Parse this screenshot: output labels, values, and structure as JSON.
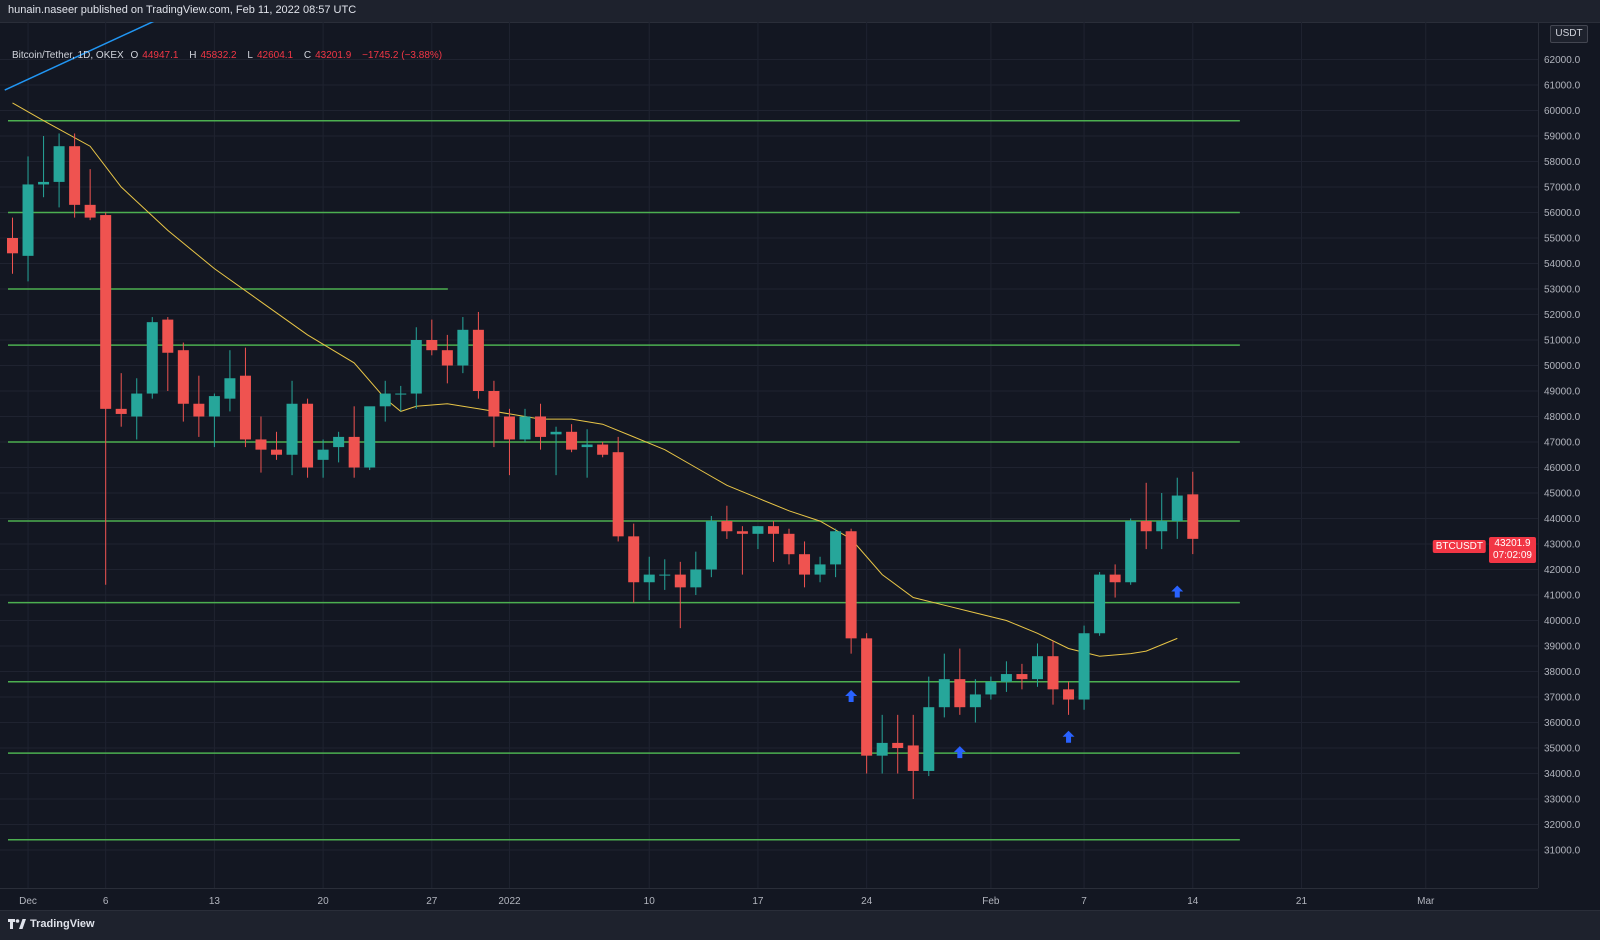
{
  "publisher_line": "hunain.naseer published on TradingView.com, Feb 11, 2022 08:57 UTC",
  "brand": "TradingView",
  "legend": {
    "symbol": "Bitcoin/Tether, 1D, OKEX",
    "open_label": "O",
    "open": "44947.1",
    "high_label": "H",
    "high": "45832.2",
    "low_label": "L",
    "low": "42604.1",
    "close_label": "C",
    "close": "43201.9",
    "change": "−1745.2 (−3.88%)"
  },
  "price_axis": {
    "unit": "USDT",
    "last_price": "43201.9",
    "countdown": "07:02:09",
    "symbol_tag": "BTCUSDT"
  },
  "colors": {
    "background": "#131722",
    "grid": "#1f2330",
    "bull": "#26a69a",
    "bear": "#ef5350",
    "sr_line": "#4caf50",
    "moving_average": "#e8c547",
    "trendline": "#2196f3",
    "arrow": "#2962ff"
  },
  "icons": [
    "tradingview-logo-icon",
    "up-arrow-icon"
  ],
  "chart_data": {
    "type": "candlestick",
    "title": "Bitcoin/Tether, 1D, OKEX",
    "ylim": [
      30000,
      63000
    ],
    "y_ticks": [
      31000,
      32000,
      33000,
      34000,
      35000,
      36000,
      37000,
      38000,
      39000,
      40000,
      41000,
      42000,
      43000,
      44000,
      45000,
      46000,
      47000,
      48000,
      49000,
      50000,
      51000,
      52000,
      53000,
      54000,
      55000,
      56000,
      57000,
      58000,
      59000,
      60000,
      61000,
      62000
    ],
    "x_ticks": [
      "Dec",
      "6",
      "13",
      "20",
      "27",
      "2022",
      "10",
      "17",
      "24",
      "Feb",
      "7",
      "14",
      "21",
      "Mar"
    ],
    "x_tick_index": [
      1,
      6,
      13,
      20,
      27,
      32,
      41,
      48,
      55,
      63,
      69,
      76,
      83,
      91
    ],
    "candles": [
      {
        "o": 55000,
        "h": 55800,
        "l": 53600,
        "c": 54400
      },
      {
        "o": 54300,
        "h": 58200,
        "l": 53300,
        "c": 57100
      },
      {
        "o": 57100,
        "h": 59000,
        "l": 56600,
        "c": 57200
      },
      {
        "o": 57200,
        "h": 59100,
        "l": 56200,
        "c": 58600
      },
      {
        "o": 58600,
        "h": 59100,
        "l": 55800,
        "c": 56300
      },
      {
        "o": 56300,
        "h": 57700,
        "l": 55700,
        "c": 55800
      },
      {
        "o": 55900,
        "h": 56000,
        "l": 41400,
        "c": 48300
      },
      {
        "o": 48300,
        "h": 49700,
        "l": 47600,
        "c": 48100
      },
      {
        "o": 48000,
        "h": 49500,
        "l": 47100,
        "c": 48900
      },
      {
        "o": 48900,
        "h": 51900,
        "l": 48700,
        "c": 51700
      },
      {
        "o": 51800,
        "h": 51900,
        "l": 49000,
        "c": 50500
      },
      {
        "o": 50600,
        "h": 50900,
        "l": 47800,
        "c": 48500
      },
      {
        "o": 48500,
        "h": 49600,
        "l": 47200,
        "c": 48000
      },
      {
        "o": 48000,
        "h": 48900,
        "l": 46800,
        "c": 48800
      },
      {
        "o": 48700,
        "h": 50600,
        "l": 48200,
        "c": 49500
      },
      {
        "o": 49600,
        "h": 50700,
        "l": 46800,
        "c": 47100
      },
      {
        "o": 47100,
        "h": 48000,
        "l": 45800,
        "c": 46700
      },
      {
        "o": 46700,
        "h": 47400,
        "l": 46300,
        "c": 46500
      },
      {
        "o": 46500,
        "h": 49400,
        "l": 45700,
        "c": 48500
      },
      {
        "o": 48500,
        "h": 48700,
        "l": 45600,
        "c": 46000
      },
      {
        "o": 46300,
        "h": 47100,
        "l": 45600,
        "c": 46700
      },
      {
        "o": 46800,
        "h": 47400,
        "l": 46200,
        "c": 47200
      },
      {
        "o": 47200,
        "h": 48400,
        "l": 45600,
        "c": 46000
      },
      {
        "o": 46000,
        "h": 48100,
        "l": 45900,
        "c": 48400
      },
      {
        "o": 48400,
        "h": 49400,
        "l": 47800,
        "c": 48900
      },
      {
        "o": 48900,
        "h": 49200,
        "l": 48200,
        "c": 48900
      },
      {
        "o": 48900,
        "h": 51500,
        "l": 48300,
        "c": 51000
      },
      {
        "o": 51000,
        "h": 51800,
        "l": 50400,
        "c": 50600
      },
      {
        "o": 50600,
        "h": 51200,
        "l": 49300,
        "c": 50000
      },
      {
        "o": 50000,
        "h": 51900,
        "l": 49700,
        "c": 51400
      },
      {
        "o": 51400,
        "h": 52100,
        "l": 48700,
        "c": 49000
      },
      {
        "o": 49000,
        "h": 49400,
        "l": 46800,
        "c": 48000
      },
      {
        "o": 48000,
        "h": 48300,
        "l": 45700,
        "c": 47100
      },
      {
        "o": 47100,
        "h": 48300,
        "l": 47000,
        "c": 48000
      },
      {
        "o": 48000,
        "h": 48500,
        "l": 46700,
        "c": 47200
      },
      {
        "o": 47300,
        "h": 47600,
        "l": 45700,
        "c": 47400
      },
      {
        "o": 47400,
        "h": 47700,
        "l": 46600,
        "c": 46700
      },
      {
        "o": 46800,
        "h": 47500,
        "l": 45600,
        "c": 46900
      },
      {
        "o": 46900,
        "h": 47000,
        "l": 46400,
        "c": 46500
      },
      {
        "o": 46600,
        "h": 47200,
        "l": 43100,
        "c": 43300
      },
      {
        "o": 43300,
        "h": 43800,
        "l": 40700,
        "c": 41500
      },
      {
        "o": 41500,
        "h": 42500,
        "l": 40800,
        "c": 41800
      },
      {
        "o": 41800,
        "h": 42400,
        "l": 41200,
        "c": 41800
      },
      {
        "o": 41800,
        "h": 42300,
        "l": 39700,
        "c": 41300
      },
      {
        "o": 41300,
        "h": 42700,
        "l": 41000,
        "c": 42000
      },
      {
        "o": 42000,
        "h": 44100,
        "l": 41700,
        "c": 43900
      },
      {
        "o": 43900,
        "h": 44500,
        "l": 43200,
        "c": 43500
      },
      {
        "o": 43500,
        "h": 43700,
        "l": 41800,
        "c": 43400
      },
      {
        "o": 43400,
        "h": 43700,
        "l": 42800,
        "c": 43700
      },
      {
        "o": 43700,
        "h": 43900,
        "l": 42300,
        "c": 43400
      },
      {
        "o": 43400,
        "h": 43600,
        "l": 42200,
        "c": 42600
      },
      {
        "o": 42600,
        "h": 43100,
        "l": 41300,
        "c": 41800
      },
      {
        "o": 41800,
        "h": 42500,
        "l": 41500,
        "c": 42200
      },
      {
        "o": 42200,
        "h": 43600,
        "l": 41700,
        "c": 43500
      },
      {
        "o": 43500,
        "h": 43600,
        "l": 38700,
        "c": 39300
      },
      {
        "o": 39300,
        "h": 39500,
        "l": 34000,
        "c": 34700
      },
      {
        "o": 34700,
        "h": 36300,
        "l": 34000,
        "c": 35200
      },
      {
        "o": 35200,
        "h": 36300,
        "l": 34000,
        "c": 35000
      },
      {
        "o": 35100,
        "h": 36300,
        "l": 33000,
        "c": 34100
      },
      {
        "o": 34100,
        "h": 37800,
        "l": 33900,
        "c": 36600
      },
      {
        "o": 36600,
        "h": 38700,
        "l": 36200,
        "c": 37700
      },
      {
        "o": 37700,
        "h": 38900,
        "l": 36300,
        "c": 36600
      },
      {
        "o": 36600,
        "h": 37700,
        "l": 36000,
        "c": 37100
      },
      {
        "o": 37100,
        "h": 37800,
        "l": 36900,
        "c": 37600
      },
      {
        "o": 37600,
        "h": 38400,
        "l": 37200,
        "c": 37900
      },
      {
        "o": 37900,
        "h": 38300,
        "l": 37300,
        "c": 37700
      },
      {
        "o": 37700,
        "h": 39100,
        "l": 37400,
        "c": 38600
      },
      {
        "o": 38600,
        "h": 39200,
        "l": 36700,
        "c": 37300
      },
      {
        "o": 37300,
        "h": 37600,
        "l": 36300,
        "c": 36900
      },
      {
        "o": 36900,
        "h": 39800,
        "l": 36500,
        "c": 39500
      },
      {
        "o": 39500,
        "h": 41900,
        "l": 39400,
        "c": 41800
      },
      {
        "o": 41800,
        "h": 42200,
        "l": 40900,
        "c": 41500
      },
      {
        "o": 41500,
        "h": 44000,
        "l": 41400,
        "c": 43900
      },
      {
        "o": 43900,
        "h": 45400,
        "l": 42800,
        "c": 43500
      },
      {
        "o": 43500,
        "h": 45000,
        "l": 42800,
        "c": 43900
      },
      {
        "o": 43900,
        "h": 45600,
        "l": 43200,
        "c": 44900
      },
      {
        "o": 44947,
        "h": 45832,
        "l": 42604,
        "c": 43202
      }
    ],
    "support_resistance": [
      {
        "price": 59600,
        "from": 0,
        "to": 79
      },
      {
        "price": 56000,
        "from": 0,
        "to": 79
      },
      {
        "price": 53000,
        "from": 0,
        "to": 28
      },
      {
        "price": 50800,
        "from": 0,
        "to": 79
      },
      {
        "price": 47000,
        "from": 0,
        "to": 79
      },
      {
        "price": 43900,
        "from": 0,
        "to": 79
      },
      {
        "price": 40700,
        "from": 0,
        "to": 79
      },
      {
        "price": 37600,
        "from": 0,
        "to": 79
      },
      {
        "price": 34800,
        "from": 0,
        "to": 79
      },
      {
        "price": 31400,
        "from": 0,
        "to": 79
      }
    ],
    "trendline": {
      "from": {
        "i": -0.5,
        "p": 60800
      },
      "to": {
        "i": 11.6,
        "p": 64200
      }
    },
    "arrows": [
      {
        "i": 54,
        "p": 37000
      },
      {
        "i": 61,
        "p": 34800
      },
      {
        "i": 68,
        "p": 35400
      },
      {
        "i": 75,
        "p": 41100
      }
    ],
    "moving_average": [
      {
        "i": 0,
        "p": 60300
      },
      {
        "i": 2,
        "p": 59600
      },
      {
        "i": 5,
        "p": 58600
      },
      {
        "i": 7,
        "p": 57000
      },
      {
        "i": 10,
        "p": 55300
      },
      {
        "i": 13,
        "p": 53800
      },
      {
        "i": 16,
        "p": 52500
      },
      {
        "i": 19,
        "p": 51200
      },
      {
        "i": 22,
        "p": 50100
      },
      {
        "i": 24,
        "p": 48700
      },
      {
        "i": 25,
        "p": 48200
      },
      {
        "i": 26,
        "p": 48400
      },
      {
        "i": 28,
        "p": 48500
      },
      {
        "i": 30,
        "p": 48300
      },
      {
        "i": 32,
        "p": 48100
      },
      {
        "i": 34,
        "p": 47900
      },
      {
        "i": 36,
        "p": 47900
      },
      {
        "i": 38,
        "p": 47700
      },
      {
        "i": 40,
        "p": 47200
      },
      {
        "i": 42,
        "p": 46700
      },
      {
        "i": 44,
        "p": 46000
      },
      {
        "i": 46,
        "p": 45300
      },
      {
        "i": 48,
        "p": 44800
      },
      {
        "i": 50,
        "p": 44300
      },
      {
        "i": 52,
        "p": 43900
      },
      {
        "i": 54,
        "p": 43200
      },
      {
        "i": 56,
        "p": 41800
      },
      {
        "i": 58,
        "p": 40900
      },
      {
        "i": 60,
        "p": 40600
      },
      {
        "i": 62,
        "p": 40300
      },
      {
        "i": 64,
        "p": 40000
      },
      {
        "i": 66,
        "p": 39500
      },
      {
        "i": 68,
        "p": 38900
      },
      {
        "i": 70,
        "p": 38600
      },
      {
        "i": 72,
        "p": 38700
      },
      {
        "i": 73,
        "p": 38800
      },
      {
        "i": 75,
        "p": 39300
      }
    ]
  }
}
